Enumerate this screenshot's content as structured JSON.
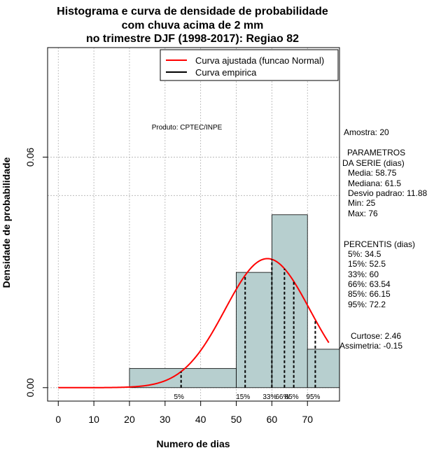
{
  "chart_data": {
    "type": "histogram",
    "title_lines": [
      "Histograma e curva de densidade de probabilidade",
      "com chuva acima de 2 mm",
      "no trimestre DJF (1998-2017): Regiao 82"
    ],
    "xlabel": "Numero de dias",
    "ylabel": "Densidade de probabilidade",
    "xlim": [
      -3,
      79
    ],
    "ylim": [
      -0.0035,
      0.0885
    ],
    "x_ticks": [
      0,
      10,
      20,
      30,
      40,
      50,
      60,
      70
    ],
    "y_ticks": [
      0.0,
      0.06
    ],
    "y_tick_labels": [
      "0.00",
      "0.06"
    ],
    "bins": [
      {
        "from": 20,
        "to": 50,
        "density": 0.005
      },
      {
        "from": 50,
        "to": 60,
        "density": 0.03
      },
      {
        "from": 60,
        "to": 70,
        "density": 0.045
      },
      {
        "from": 70,
        "to": 80,
        "density": 0.01
      }
    ],
    "normal_fit": {
      "mean": 58.75,
      "sd": 11.88,
      "from": 0,
      "to": 76
    },
    "hline_dotted": 0.05,
    "percentile_lines": [
      {
        "label": "5%",
        "x": 34.5
      },
      {
        "label": "15%",
        "x": 52.5
      },
      {
        "label": "33%",
        "x": 60
      },
      {
        "label": "66%",
        "x": 63.54
      },
      {
        "label": "85%",
        "x": 66.15
      },
      {
        "label": "95%",
        "x": 72.2
      }
    ],
    "legend": [
      {
        "label": "Curva ajustada (funcao Normal)",
        "color": "#ff0000"
      },
      {
        "label": "Curva empirica",
        "color": "#000000"
      }
    ],
    "colors": {
      "bars": "#b7cfcf",
      "fit": "#ff0000",
      "grid": "#b0b0b0"
    }
  },
  "annotation": "Produto: CPTEC/INPE",
  "stats": {
    "amostra": "Amostra: 20",
    "parametros_title": "PARAMETROS",
    "parametros_subtitle": "DA SERIE (dias)",
    "parametros": [
      "Media: 58.75",
      "Mediana: 61.5",
      "Desvio padrao: 11.88",
      "Min: 25",
      "Max: 76"
    ],
    "percentis_title": "PERCENTIS (dias)",
    "percentis": [
      "5%: 34.5",
      "15%: 52.5",
      "33%: 60",
      "66%: 63.54",
      "85%: 66.15",
      "95%: 72.2"
    ],
    "curtose": "Curtose: 2.46",
    "assimetria": "Assimetria: -0.15"
  }
}
